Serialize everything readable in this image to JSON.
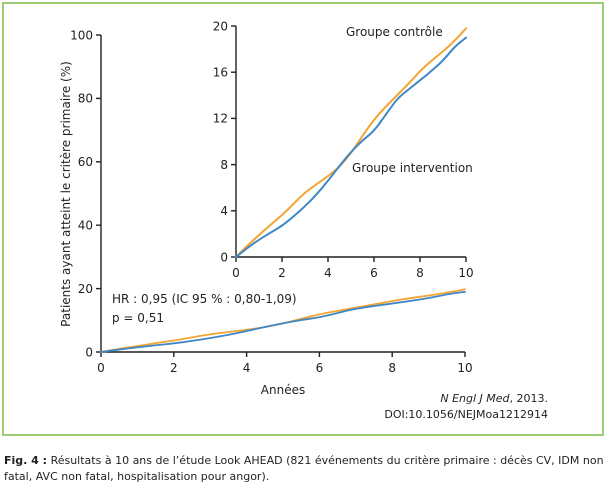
{
  "chart_data": [
    {
      "type": "line",
      "ylabel": "Patients ayant atteint le critère primaire (%)",
      "xlabel": "Années",
      "xlim": [
        0,
        10
      ],
      "ylim": [
        0,
        100
      ],
      "x_ticks": [
        0,
        2,
        4,
        6,
        8,
        10
      ],
      "y_ticks": [
        0,
        20,
        40,
        60,
        80,
        100
      ],
      "grid": false,
      "x": [
        0,
        0.5,
        1,
        1.5,
        2,
        2.5,
        3,
        3.5,
        4,
        4.5,
        5,
        5.5,
        6,
        6.5,
        7,
        7.5,
        8,
        8.5,
        9,
        9.5,
        10
      ],
      "series": [
        {
          "color": "#f2a531",
          "values": [
            0,
            1.0,
            1.9,
            2.8,
            3.6,
            4.6,
            5.6,
            6.3,
            7.0,
            7.8,
            9.0,
            10.5,
            11.9,
            13.0,
            14.0,
            15.0,
            16.1,
            17.0,
            17.8,
            18.7,
            19.8
          ]
        },
        {
          "color": "#3f88c5",
          "values": [
            0,
            0.8,
            1.5,
            2.1,
            2.7,
            3.5,
            4.4,
            5.4,
            6.6,
            7.9,
            9.1,
            10.1,
            10.9,
            12.3,
            13.7,
            14.5,
            15.3,
            16.1,
            17.0,
            18.2,
            19.0
          ]
        }
      ],
      "annotations": [
        "HR : 0,95 (IC 95 % : 0,80-1,09)",
        "p = 0,51"
      ]
    },
    {
      "type": "line",
      "xlim": [
        0,
        10
      ],
      "ylim": [
        0,
        20
      ],
      "x_ticks": [
        0,
        2,
        4,
        6,
        8,
        10
      ],
      "y_ticks": [
        0,
        4,
        8,
        12,
        16,
        20
      ],
      "grid": false,
      "x": [
        0,
        0.5,
        1,
        1.5,
        2,
        2.5,
        3,
        3.5,
        4,
        4.5,
        5,
        5.5,
        6,
        6.5,
        7,
        7.5,
        8,
        8.5,
        9,
        9.5,
        10
      ],
      "series": [
        {
          "name": "Groupe contrôle",
          "color": "#f2a531",
          "values": [
            0,
            1.0,
            1.9,
            2.8,
            3.6,
            4.6,
            5.6,
            6.3,
            7.0,
            7.8,
            9.0,
            10.5,
            11.9,
            13.0,
            14.0,
            15.0,
            16.1,
            17.0,
            17.8,
            18.7,
            19.8
          ]
        },
        {
          "name": "Groupe intervention",
          "color": "#3f88c5",
          "values": [
            0,
            0.8,
            1.5,
            2.1,
            2.7,
            3.5,
            4.4,
            5.4,
            6.6,
            7.9,
            9.1,
            10.1,
            10.9,
            12.3,
            13.7,
            14.5,
            15.3,
            16.1,
            17.0,
            18.2,
            19.0
          ]
        }
      ]
    }
  ],
  "citation": {
    "journal": "N Engl J Med",
    "year": ", 2013.",
    "doi": "DOI:10.1056/NEJMoa1212914"
  },
  "caption": {
    "label": "Fig. 4 :",
    "text": "Résultats à 10 ans de l’étude Look AHEAD (821 événements du critère primaire : décès CV, IDM non fatal, AVC non fatal, hospitalisation pour angor)."
  },
  "colors": {
    "frame_border": "#9ccd72",
    "axis": "#231f20",
    "text": "#231f20"
  }
}
